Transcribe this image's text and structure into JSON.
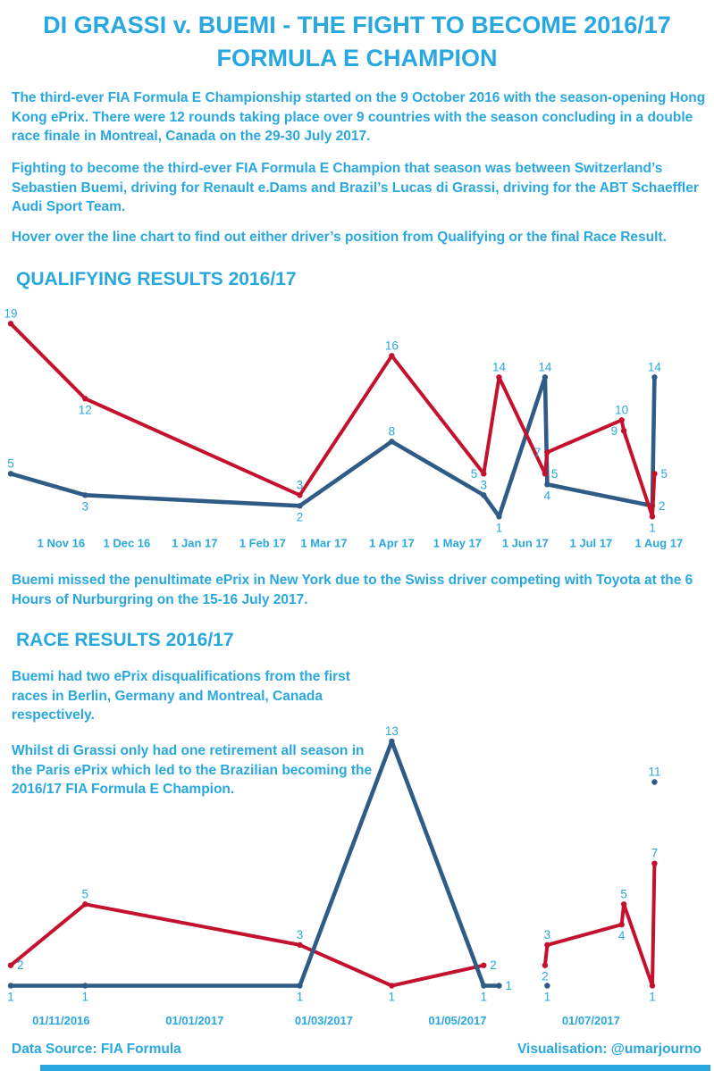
{
  "colors": {
    "accent": "#29A8E0",
    "di_grassi_red": "#C4122E",
    "buemi_blue": "#2E5C87"
  },
  "title": {
    "line1": "DI GRASSI v. BUEMI - THE FIGHT TO BECOME 2016/17",
    "line2": "FORMULA E CHAMPION"
  },
  "intro": {
    "p1": "The third-ever FIA Formula E Championship started on the 9 October 2016 with the season-opening Hong Kong ePrix. There were 12 rounds taking place over 9 countries with the season concluding in a double race finale in Montreal, Canada on the 29-30 July 2017.",
    "p2": "Fighting to become the third-ever FIA Formula E Champion that season was between Switzerland’s Sebastien Buemi, driving for Renault e.Dams and Brazil’s Lucas di Grassi, driving for the ABT Schaeffler Audi Sport Team.",
    "p3": "Hover over the line chart to find out either driver’s position from Qualifying or the final Race Result."
  },
  "qualifying_note": "Buemi missed the penultimate ePrix in New York due to the Swiss driver competing with Toyota at the 6 Hours of Nurburgring on the 15-16 July 2017.",
  "race_notes": {
    "p1": "Buemi had two ePrix disqualifications from the first races in Berlin, Germany and Montreal, Canada respectively.",
    "p2": "Whilst di Grassi only had one retirement all season in the Paris ePrix which led to the Brazilian becoming the 2016/17 FIA Formula E Champion."
  },
  "footer": {
    "source": "Data Source: FIA Formula",
    "credit": "Visualisation: @umarjourno"
  },
  "chart_data": [
    {
      "id": "qualifying",
      "type": "line",
      "title": "QUALIFYING RESULTS 2016/17",
      "xlabel": "",
      "ylabel": "",
      "ylim": [
        1,
        19
      ],
      "grid": false,
      "legend": "none",
      "connect_gaps": true,
      "x_dates": [
        "2016-10-09",
        "2016-11-12",
        "2017-02-18",
        "2017-04-01",
        "2017-05-13",
        "2017-05-20",
        "2017-06-10",
        "2017-06-11",
        "2017-07-15",
        "2017-07-16",
        "2017-07-29",
        "2017-07-30"
      ],
      "x_ticks": [
        {
          "date": "2016-11-01",
          "label": "1 Nov 16"
        },
        {
          "date": "2016-12-01",
          "label": "1 Dec 16"
        },
        {
          "date": "2017-01-01",
          "label": "1 Jan 17"
        },
        {
          "date": "2017-02-01",
          "label": "1 Feb 17"
        },
        {
          "date": "2017-03-01",
          "label": "1 Mar 17"
        },
        {
          "date": "2017-04-01",
          "label": "1 Apr 17"
        },
        {
          "date": "2017-05-01",
          "label": "1 May 17"
        },
        {
          "date": "2017-06-01",
          "label": "1 Jun 17"
        },
        {
          "date": "2017-07-01",
          "label": "1 Jul 17"
        },
        {
          "date": "2017-08-01",
          "label": "1 Aug 17"
        }
      ],
      "series": [
        {
          "name": "Sebastien Buemi",
          "color": "#2E5C87",
          "values": [
            5,
            3,
            2,
            8,
            3,
            1,
            14,
            4,
            null,
            null,
            2,
            14
          ],
          "label_pos": [
            "above",
            "below",
            "below",
            "above",
            "above",
            "below",
            "above",
            "below",
            null,
            null,
            "right",
            "above"
          ]
        },
        {
          "name": "Lucas di Grassi",
          "color": "#C4122E",
          "values": [
            19,
            12,
            3,
            16,
            5,
            14,
            5,
            7,
            10,
            9,
            1,
            5
          ],
          "label_pos": [
            "above",
            "below",
            "above",
            "above",
            "left",
            "above",
            "right",
            "left",
            "above",
            "left",
            "below",
            "right"
          ]
        }
      ]
    },
    {
      "id": "race",
      "type": "line",
      "title": "RACE RESULTS 2016/17",
      "xlabel": "",
      "ylabel": "",
      "ylim": [
        1,
        13
      ],
      "grid": false,
      "legend": "none",
      "connect_gaps": false,
      "x_dates": [
        "2016-10-09",
        "2016-11-12",
        "2017-02-18",
        "2017-04-01",
        "2017-05-13",
        "2017-05-20",
        "2017-06-10",
        "2017-06-11",
        "2017-07-15",
        "2017-07-16",
        "2017-07-29",
        "2017-07-30"
      ],
      "x_ticks": [
        {
          "date": "2016-11-01",
          "label": "01/11/2016"
        },
        {
          "date": "2017-01-01",
          "label": "01/01/2017"
        },
        {
          "date": "2017-03-01",
          "label": "01/03/2017"
        },
        {
          "date": "2017-05-01",
          "label": "01/05/2017"
        },
        {
          "date": "2017-07-01",
          "label": "01/07/2017"
        }
      ],
      "series": [
        {
          "name": "Lucas di Grassi",
          "color": "#C4122E",
          "values": [
            2,
            5,
            3,
            1,
            2,
            null,
            2,
            3,
            4,
            5,
            1,
            7
          ],
          "label_pos": [
            "right",
            "above",
            "above",
            "below",
            "right",
            null,
            "below",
            "above",
            "below",
            "above",
            "below",
            "above"
          ]
        },
        {
          "name": "Sebastien Buemi",
          "color": "#2E5C87",
          "values": [
            1,
            1,
            1,
            13,
            1,
            1,
            null,
            1,
            null,
            null,
            null,
            11
          ],
          "label_pos": [
            "below",
            "below",
            "below",
            "above",
            "below",
            "right",
            null,
            "below",
            null,
            null,
            null,
            "above"
          ]
        }
      ]
    }
  ]
}
